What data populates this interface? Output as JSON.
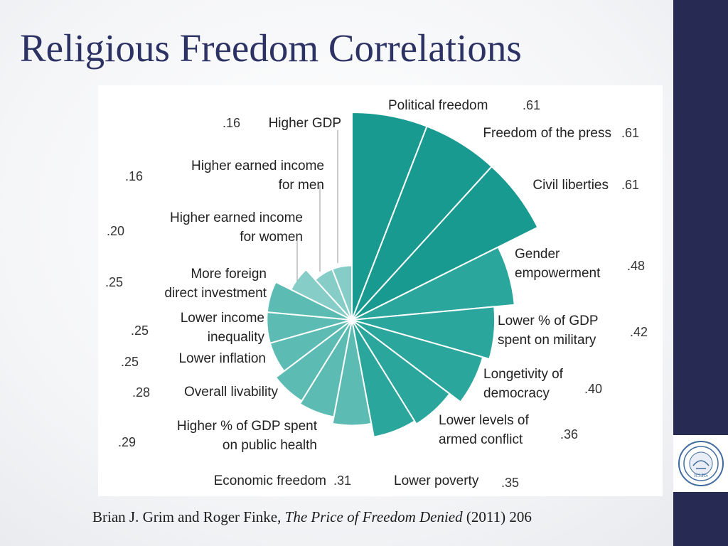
{
  "title": "Religious Freedom Correlations",
  "caption": {
    "authors": "Brian J. Grim and Roger Finke,",
    "book": "The Price of Freedom Denied",
    "year_page": "(2011) 206"
  },
  "logo": {
    "text": "ICLRS"
  },
  "colors": {
    "title": "#2c3263",
    "sidebar": "#272a52",
    "dark_teal": "#199a91",
    "mid_teal": "#2ba69d",
    "light_teal": "#5cbcb4",
    "lightest_teal": "#86cdc8"
  },
  "chart_data": {
    "type": "polar_area",
    "title": "",
    "categories": [
      "Political freedom",
      "Freedom of the press",
      "Civil liberties",
      "Gender empowerment",
      "Lower % of GDP spent on military",
      "Longetivity of democracy",
      "Lower levels of armed conflict",
      "Lower poverty",
      "Economic freedom",
      "Higher % of GDP spent on public health",
      "Overall livability",
      "Lower inflation",
      "Lower income inequality",
      "More foreign direct investment",
      "Higher earned income for women",
      "Higher earned income for men",
      "Higher GDP"
    ],
    "values": [
      0.61,
      0.61,
      0.61,
      0.48,
      0.42,
      0.4,
      0.36,
      0.35,
      0.31,
      0.29,
      0.28,
      0.25,
      0.25,
      0.25,
      0.2,
      0.16,
      0.16
    ],
    "value_labels": [
      ".61",
      ".61",
      ".61",
      ".48",
      ".42",
      ".40",
      ".36",
      ".35",
      ".31",
      ".29",
      ".28",
      ".25",
      ".25",
      ".25",
      ".20",
      ".16",
      ".16"
    ],
    "label_lines": [
      [
        "Political freedom"
      ],
      [
        "Freedom of the press"
      ],
      [
        "Civil liberties"
      ],
      [
        "Gender",
        "empowerment"
      ],
      [
        "Lower % of GDP",
        "spent on military"
      ],
      [
        "Longetivity of",
        "democracy"
      ],
      [
        "Lower levels of",
        "armed conflict"
      ],
      [
        "Lower poverty"
      ],
      [
        "Economic freedom"
      ],
      [
        "Higher % of GDP spent",
        "on public health"
      ],
      [
        "Overall livability"
      ],
      [
        "Lower inflation"
      ],
      [
        "Lower income",
        "inequality"
      ],
      [
        "More foreign",
        "direct investment"
      ],
      [
        "Higher earned income",
        "for women"
      ],
      [
        "Higher earned income",
        "for men"
      ],
      [
        "Higher GDP"
      ]
    ]
  }
}
